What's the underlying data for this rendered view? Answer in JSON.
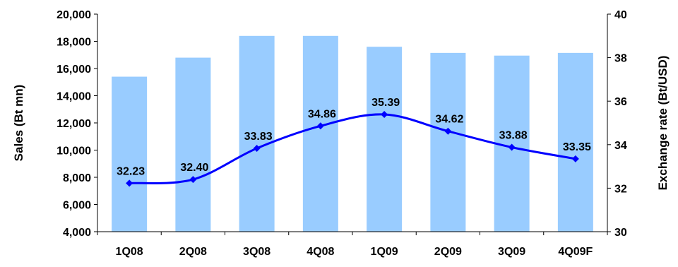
{
  "chart_data": {
    "type": "bar",
    "categories": [
      "1Q08",
      "2Q08",
      "3Q08",
      "4Q08",
      "1Q09",
      "2Q09",
      "3Q09",
      "4Q09F"
    ],
    "series": [
      {
        "type": "bar",
        "axis": "left",
        "values": [
          15400,
          16800,
          18400,
          18400,
          17600,
          17150,
          16950,
          17150
        ],
        "color": "#99ccff"
      },
      {
        "type": "line",
        "axis": "right",
        "values": [
          32.23,
          32.4,
          33.83,
          34.86,
          35.39,
          34.62,
          33.88,
          33.35
        ],
        "labels": [
          "32.23",
          "32.40",
          "33.83",
          "34.86",
          "35.39",
          "34.62",
          "33.88",
          "33.35"
        ],
        "color": "#0000ff",
        "marker": "diamond",
        "smooth": true
      }
    ],
    "ylabel": "Sales (Bt mn)",
    "y2label": "Exchange rate (Bt/USD)",
    "ylim": [
      4000,
      20000
    ],
    "y2lim": [
      30,
      40
    ],
    "yticks": [
      "4,000",
      "6,000",
      "8,000",
      "10,000",
      "12,000",
      "14,000",
      "16,000",
      "18,000",
      "20,000"
    ],
    "y2ticks": [
      "30",
      "32",
      "34",
      "36",
      "38",
      "40"
    ],
    "grid": false,
    "legend": "none"
  }
}
